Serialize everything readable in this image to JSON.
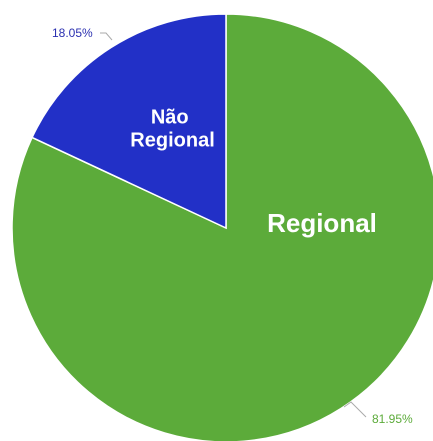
{
  "chart_data": {
    "type": "pie",
    "slices": [
      {
        "name": "Regional",
        "label_lines": [
          "Regional"
        ],
        "value": 81.95,
        "value_label": "81.95%",
        "color": "#5cab3a",
        "label_color": "#5cab3a"
      },
      {
        "name": "Não Regional",
        "label_lines": [
          "Não",
          "Regional"
        ],
        "value": 18.05,
        "value_label": "18.05%",
        "color": "#2230c7",
        "label_color": "#2a2fb0"
      }
    ],
    "start_angle_deg": 0,
    "direction": "clockwise",
    "legend": "none"
  }
}
